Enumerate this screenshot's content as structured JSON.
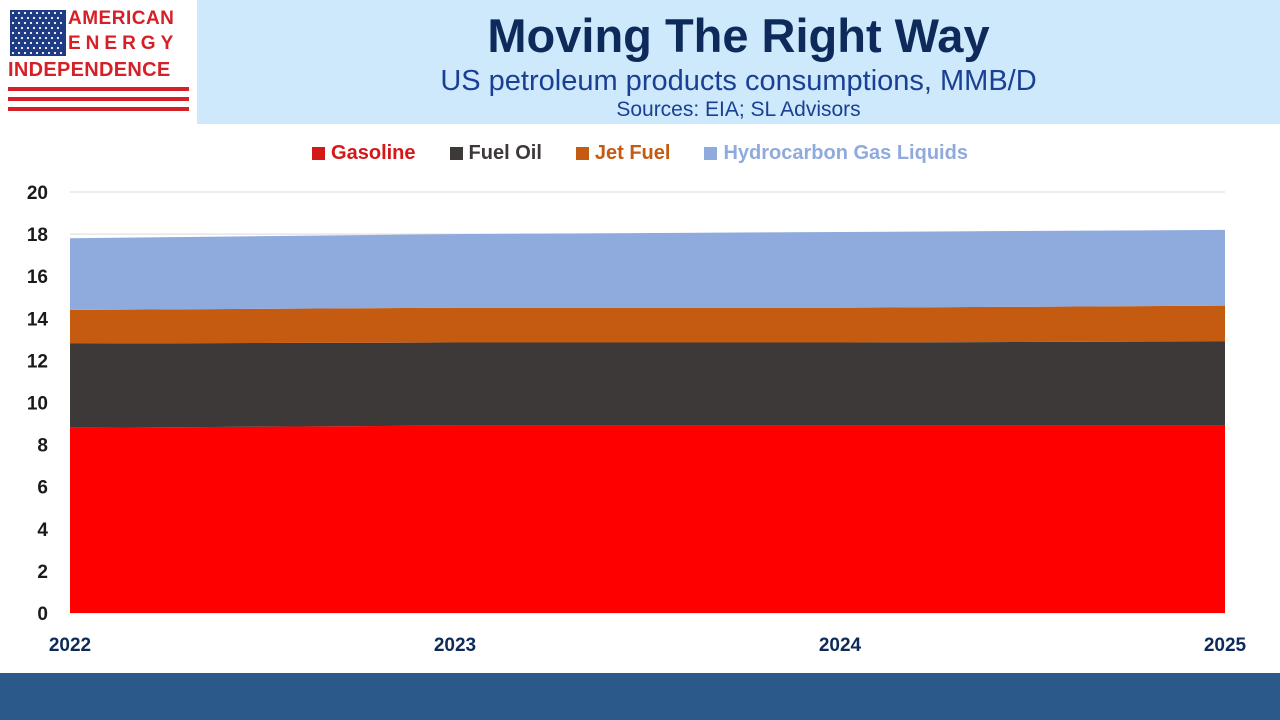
{
  "logo": {
    "line1": "AMERICAN",
    "line2": "ENERGY",
    "line3": "INDEPENDENCE"
  },
  "header": {
    "title": "Moving The Right Way",
    "subtitle": "US petroleum products consumptions, MMB/D",
    "sources": "Sources: EIA; SL Advisors"
  },
  "colors": {
    "header_band": "#cde9fb",
    "footer_bar": "#2b5a8a",
    "title": "#0d2a5a",
    "logo_red": "#d62028",
    "logo_blue": "#1f3b85"
  },
  "chart_data": {
    "type": "area",
    "stacked": true,
    "title": "Moving The Right Way",
    "subtitle": "US petroleum products consumptions, MMB/D",
    "xlabel": "",
    "ylabel": "",
    "x": [
      2022,
      2023,
      2024,
      2025
    ],
    "x_ticks": [
      "2022",
      "2023",
      "2024",
      "2025"
    ],
    "ylim": [
      0,
      20
    ],
    "y_ticks": [
      "0",
      "2",
      "4",
      "6",
      "8",
      "10",
      "12",
      "14",
      "16",
      "18",
      "20"
    ],
    "grid": true,
    "legend_position": "top",
    "series": [
      {
        "name": "Gasoline",
        "color": "#ff0000",
        "legend_color": "#d41818",
        "values": [
          8.8,
          8.9,
          8.9,
          8.9
        ]
      },
      {
        "name": "Fuel Oil",
        "color": "#3d3938",
        "legend_color": "#3d3938",
        "values": [
          4.0,
          3.95,
          3.95,
          4.0
        ]
      },
      {
        "name": "Jet Fuel",
        "color": "#c55a11",
        "legend_color": "#c55a11",
        "values": [
          1.6,
          1.65,
          1.65,
          1.7
        ]
      },
      {
        "name": "Hydrocarbon Gas Liquids",
        "color": "#8faadc",
        "legend_color": "#8faadc",
        "values": [
          3.4,
          3.5,
          3.6,
          3.6
        ]
      }
    ]
  }
}
